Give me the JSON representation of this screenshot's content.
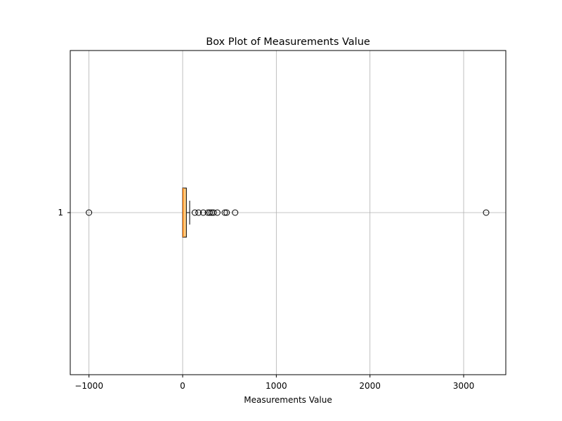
{
  "chart_data": {
    "type": "box",
    "orientation": "horizontal",
    "title": "Box Plot of Measurements Value",
    "xlabel": "Measurements Value",
    "ylabel": "",
    "xlim": [
      -1200,
      3450
    ],
    "x_ticks": [
      {
        "value": -1000,
        "label": "−1000"
      },
      {
        "value": 0,
        "label": "0"
      },
      {
        "value": 1000,
        "label": "1000"
      },
      {
        "value": 2000,
        "label": "2000"
      },
      {
        "value": 3000,
        "label": "3000"
      }
    ],
    "y_ticks": [
      {
        "value": 1,
        "label": "1"
      }
    ],
    "grid": true,
    "box": {
      "whisker_low": 0,
      "q1": 0,
      "median": 5,
      "q3": 40,
      "whisker_high": 75,
      "outliers": [
        -1000,
        130,
        170,
        220,
        270,
        290,
        310,
        330,
        370,
        450,
        470,
        560,
        3240
      ]
    },
    "colors": {
      "box_fill": "#ffcc80",
      "median": "#ff7f0e"
    }
  }
}
